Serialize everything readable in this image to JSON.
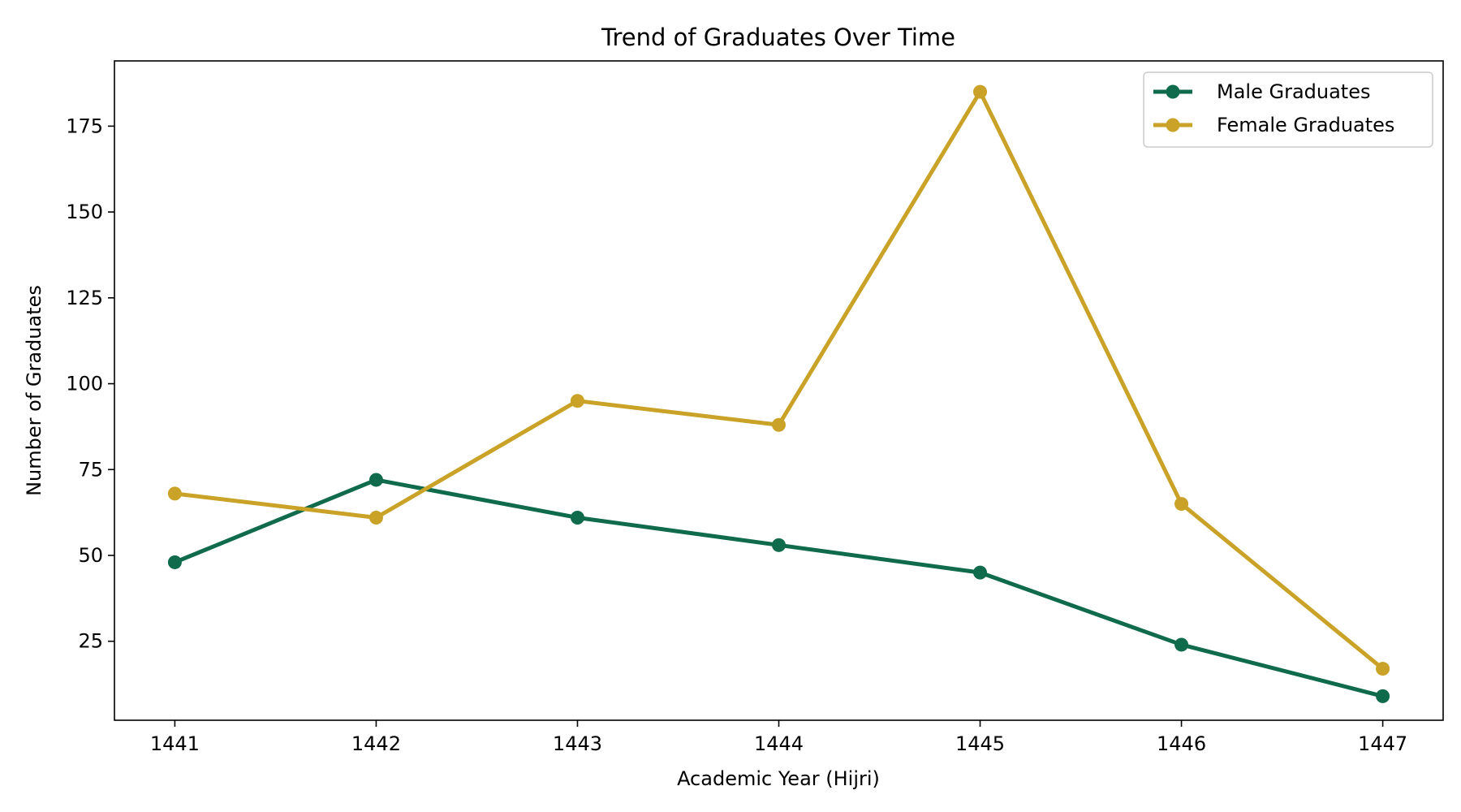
{
  "chart_data": {
    "type": "line",
    "title": "Trend of Graduates Over Time",
    "xlabel": "Academic Year (Hijri)",
    "ylabel": "Number of Graduates",
    "x": [
      "1441",
      "1442",
      "1443",
      "1444",
      "1445",
      "1446",
      "1447"
    ],
    "yticks": [
      25,
      50,
      75,
      100,
      125,
      150,
      175
    ],
    "ylim": [
      2,
      194
    ],
    "xlim": [
      -0.3,
      6.3
    ],
    "grid": false,
    "legend_position": "top-right",
    "series": [
      {
        "name": "Male Graduates",
        "color": "#0f6b4b",
        "values": [
          48,
          72,
          61,
          53,
          45,
          24,
          9
        ]
      },
      {
        "name": "Female Graduates",
        "color": "#c9a227",
        "values": [
          68,
          61,
          95,
          88,
          185,
          65,
          17
        ]
      }
    ]
  }
}
